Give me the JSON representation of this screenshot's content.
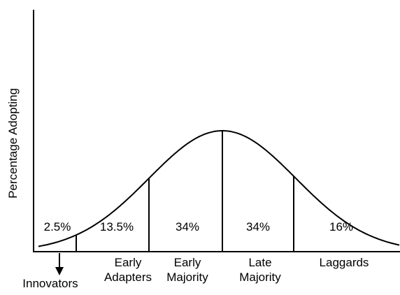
{
  "y_axis_label": "Percentage Adopting",
  "segments": [
    {
      "share": "2.5%",
      "label": [
        "Innovators"
      ]
    },
    {
      "share": "13.5%",
      "label": [
        "Early",
        "Adapters"
      ]
    },
    {
      "share": "34%",
      "label": [
        "Early",
        "Majority"
      ]
    },
    {
      "share": "34%",
      "label": [
        "Late",
        "Majority"
      ]
    },
    {
      "share": "16%",
      "label": [
        "Laggards"
      ]
    }
  ]
}
